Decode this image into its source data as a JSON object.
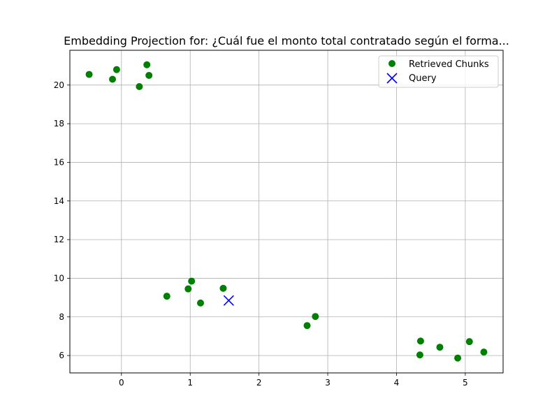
{
  "chart_data": {
    "type": "scatter",
    "title": "Embedding Projection for: ¿Cuál fue el monto total contratado según el forma...",
    "xlabel": "",
    "ylabel": "",
    "xlim": [
      -0.75,
      5.55
    ],
    "ylim": [
      5.1,
      21.8
    ],
    "xticks": [
      0,
      1,
      2,
      3,
      4,
      5
    ],
    "yticks": [
      6,
      8,
      10,
      12,
      14,
      16,
      18,
      20
    ],
    "grid": true,
    "legend_position": "top-right",
    "series": [
      {
        "name": "Retrieved Chunks",
        "marker": "circle",
        "color": "#008000",
        "points": [
          {
            "x": -0.47,
            "y": 20.55
          },
          {
            "x": -0.07,
            "y": 20.8
          },
          {
            "x": -0.13,
            "y": 20.3
          },
          {
            "x": 0.37,
            "y": 21.05
          },
          {
            "x": 0.4,
            "y": 20.5
          },
          {
            "x": 0.26,
            "y": 19.92
          },
          {
            "x": 0.66,
            "y": 9.07
          },
          {
            "x": 0.97,
            "y": 9.45
          },
          {
            "x": 1.02,
            "y": 9.85
          },
          {
            "x": 1.15,
            "y": 8.72
          },
          {
            "x": 1.48,
            "y": 9.48
          },
          {
            "x": 2.7,
            "y": 7.55
          },
          {
            "x": 2.82,
            "y": 8.02
          },
          {
            "x": 4.35,
            "y": 6.75
          },
          {
            "x": 4.34,
            "y": 6.03
          },
          {
            "x": 4.63,
            "y": 6.43
          },
          {
            "x": 4.89,
            "y": 5.87
          },
          {
            "x": 5.06,
            "y": 6.72
          },
          {
            "x": 5.27,
            "y": 6.18
          }
        ]
      },
      {
        "name": "Query",
        "marker": "x",
        "color": "#0000ff",
        "points": [
          {
            "x": 1.56,
            "y": 8.85
          }
        ]
      }
    ]
  }
}
